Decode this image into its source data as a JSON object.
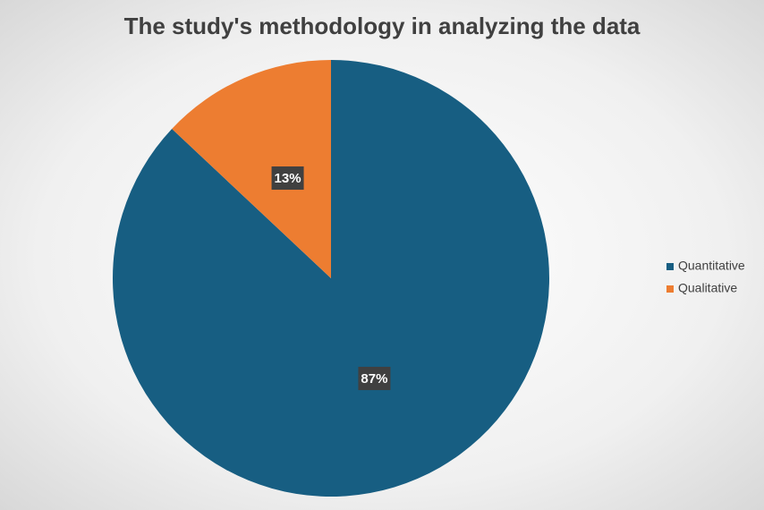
{
  "chart_data": {
    "type": "pie",
    "title": "The study's methodology  in analyzing the data",
    "categories": [
      "Quantitative",
      "Qualitative"
    ],
    "values": [
      87,
      13
    ],
    "value_labels": [
      "87%",
      "13%"
    ],
    "colors": [
      "#175e82",
      "#ed7d31"
    ],
    "legend": "right"
  }
}
